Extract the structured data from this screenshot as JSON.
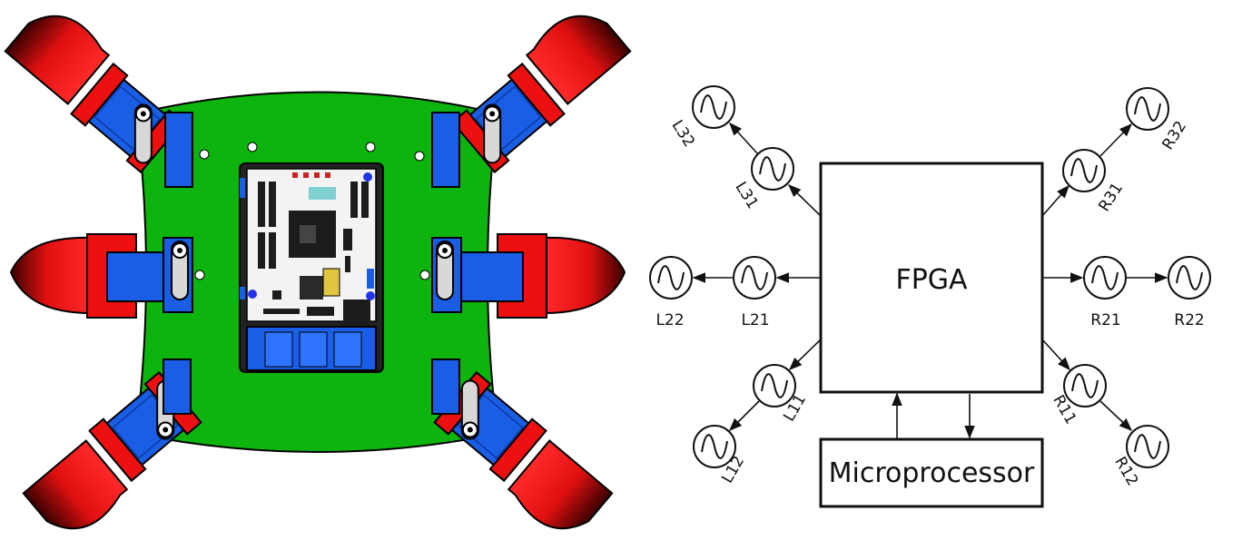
{
  "diagram": {
    "fpga_label": "FPGA",
    "microprocessor_label": "Microprocessor",
    "oscillators": {
      "L32": "L32",
      "L31": "L31",
      "L22": "L22",
      "L21": "L21",
      "L11": "L11",
      "L12": "L12",
      "R32": "R32",
      "R31": "R31",
      "R21": "R21",
      "R22": "R22",
      "R11": "R11",
      "R12": "R12"
    }
  },
  "colors": {
    "board_green": "#0db40d",
    "leg_red": "#ec1010",
    "servo_blue": "#1a5ee6",
    "line": "#111111"
  }
}
